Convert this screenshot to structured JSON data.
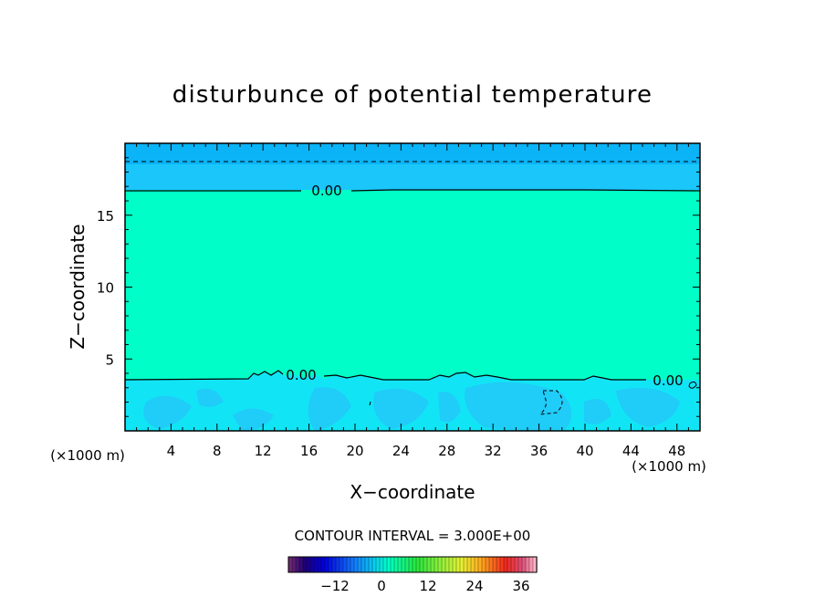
{
  "chart_data": {
    "type": "heatmap",
    "title": "disturbunce of potential temperature",
    "xlabel": "X−coordinate",
    "ylabel": "Z−coordinate",
    "x_unit_left": "(×1000 m)",
    "x_unit_right": "(×1000 m)",
    "xlim": [
      0,
      50
    ],
    "ylim": [
      0,
      20
    ],
    "x_ticks": [
      4,
      8,
      12,
      16,
      20,
      24,
      28,
      32,
      36,
      40,
      44,
      48
    ],
    "y_ticks": [
      5,
      10,
      15
    ],
    "contour_interval_label": "CONTOUR INTERVAL = 3.000E+00",
    "contour_labels": [
      {
        "text": "0.00",
        "x": 17.7,
        "z": 16.7
      },
      {
        "text": "0.00",
        "x": 14.5,
        "z": 4.0
      },
      {
        "text": "0.00",
        "x": 47.0,
        "z": 3.5
      }
    ],
    "fields": {
      "upper_band_value": -3,
      "middle_band_value": 0,
      "lower_band_value": -3
    },
    "colorbar": {
      "ticks": [
        -12,
        0,
        12,
        24,
        36
      ],
      "range": [
        -24,
        40
      ],
      "colors": {
        "upper_band": "#0AB4F6",
        "upper_band_light": "#1AC6FA",
        "middle_band": "#00FFC8",
        "lower_band": "#11E5F5",
        "lower_band_patch": "#20CCF8"
      }
    }
  }
}
